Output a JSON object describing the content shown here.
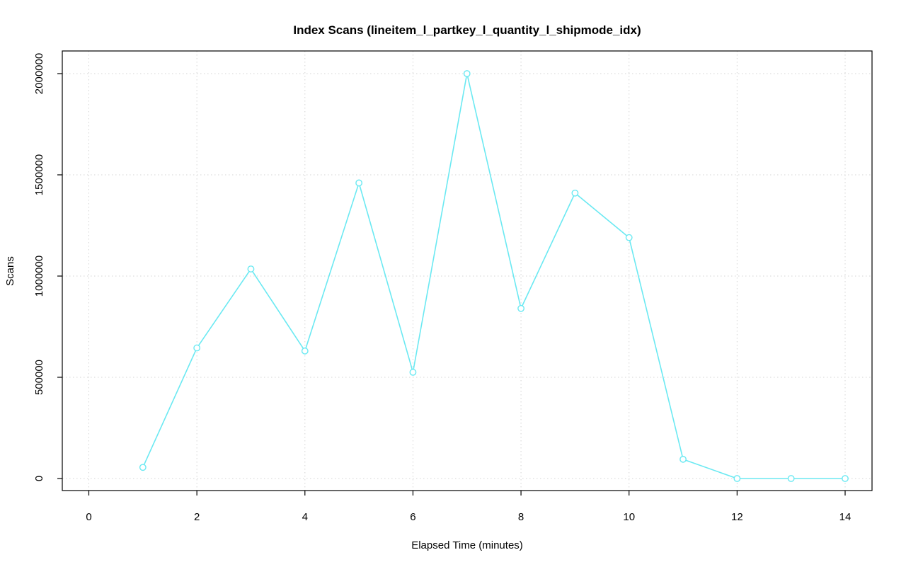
{
  "chart_data": {
    "type": "line",
    "title": "Index Scans (lineitem_l_partkey_l_quantity_l_shipmode_idx)",
    "xlabel": "Elapsed Time (minutes)",
    "ylabel": "Scans",
    "x": [
      1,
      2,
      3,
      4,
      5,
      6,
      7,
      8,
      9,
      10,
      11,
      12,
      13,
      14
    ],
    "y": [
      55000,
      645000,
      1035000,
      630000,
      1460000,
      525000,
      2000000,
      840000,
      1410000,
      1190000,
      95000,
      0,
      0,
      0
    ],
    "xticks": [
      0,
      2,
      4,
      6,
      8,
      10,
      12,
      14
    ],
    "yticks": [
      0,
      500000,
      1000000,
      1500000,
      2000000
    ],
    "xlim": [
      0,
      14
    ],
    "ylim": [
      0,
      2000000
    ],
    "grid": true,
    "legend_position": "none",
    "marker": "open-circle",
    "colors": {
      "series": "#6be9f2",
      "grid": "#d4d4d4",
      "axis": "#000000",
      "background": "#ffffff"
    }
  }
}
